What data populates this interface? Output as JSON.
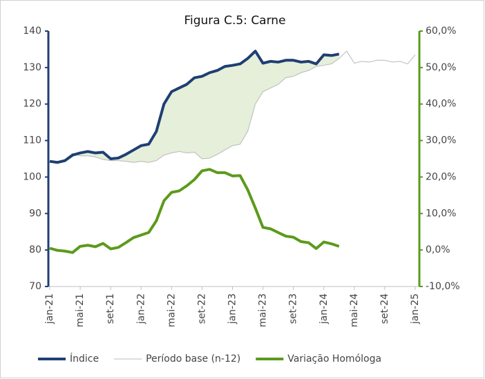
{
  "chart_data": {
    "type": "line",
    "title": "Figura C.5: Carne",
    "categories": [
      "jan-21",
      null,
      null,
      null,
      "mai-21",
      null,
      null,
      null,
      "set-21",
      null,
      null,
      null,
      "jan-22",
      null,
      null,
      null,
      "mai-22",
      null,
      null,
      null,
      "set-22",
      null,
      null,
      null,
      "jan-23",
      null,
      null,
      null,
      "mai-23",
      null,
      null,
      null,
      "set-23",
      null,
      null,
      null,
      "jan-24",
      null,
      null,
      null,
      "mai-24",
      null,
      null,
      null,
      "set-24",
      null,
      null,
      null,
      "jan-25"
    ],
    "series": [
      {
        "name": "Índice",
        "color": "#1f3f73",
        "axis": "y",
        "values": [
          104.3,
          104.0,
          104.5,
          106.0,
          106.6,
          107.0,
          106.6,
          106.8,
          105.0,
          105.2,
          106.2,
          107.4,
          108.6,
          109.0,
          112.5,
          120.0,
          123.4,
          124.4,
          125.4,
          127.2,
          127.6,
          128.6,
          129.2,
          130.3,
          130.6,
          131.0,
          132.5,
          134.5,
          131.2,
          131.7,
          131.5,
          132.0,
          132.0,
          131.5,
          131.7,
          131.0,
          133.5,
          133.3,
          133.7,
          null,
          null,
          null,
          null,
          null,
          null,
          null,
          null,
          null,
          null
        ]
      },
      {
        "name": "Período base (n-12)",
        "color": "#b8b8b8",
        "axis": "y",
        "values": [
          104.0,
          104.3,
          104.8,
          106.5,
          105.8,
          105.8,
          105.5,
          104.8,
          104.5,
          104.5,
          104.3,
          104.0,
          104.3,
          104.0,
          104.5,
          106.0,
          106.6,
          107.0,
          106.6,
          106.8,
          105.0,
          105.2,
          106.2,
          107.4,
          108.6,
          109.0,
          112.5,
          120.0,
          123.4,
          124.4,
          125.4,
          127.2,
          127.6,
          128.6,
          129.2,
          130.3,
          130.6,
          131.0,
          132.5,
          134.5,
          131.2,
          131.7,
          131.5,
          132.0,
          132.0,
          131.5,
          131.7,
          131.0,
          133.5
        ]
      },
      {
        "name": "Variação Homóloga",
        "color": "#5b9a1b",
        "axis": "y2",
        "values": [
          0.5,
          -0.1,
          -0.3,
          -0.7,
          1.0,
          1.3,
          0.9,
          1.8,
          0.3,
          0.7,
          2.0,
          3.4,
          4.1,
          4.8,
          8.0,
          13.5,
          15.8,
          16.2,
          17.6,
          19.3,
          21.7,
          22.1,
          21.2,
          21.2,
          20.3,
          20.4,
          16.5,
          11.5,
          6.2,
          5.8,
          4.8,
          3.8,
          3.5,
          2.3,
          2.0,
          0.4,
          2.2,
          1.7,
          1.0,
          null,
          null,
          null,
          null,
          null,
          null,
          null,
          null,
          null,
          null
        ]
      }
    ],
    "ylim": [
      70,
      140
    ],
    "yticks": [
      70,
      80,
      90,
      100,
      110,
      120,
      130,
      140
    ],
    "y2lim": [
      -10,
      60
    ],
    "y2ticks": [
      {
        "value": -10,
        "label": "-10,0%"
      },
      {
        "value": 0,
        "label": "0,0%"
      },
      {
        "value": 10,
        "label": "10,0%"
      },
      {
        "value": 20,
        "label": "20,0%"
      },
      {
        "value": 30,
        "label": "30,0%"
      },
      {
        "value": 40,
        "label": "40,0%"
      },
      {
        "value": 50,
        "label": "50,0%"
      },
      {
        "value": 60,
        "label": "60,0%"
      }
    ],
    "grid": false,
    "legend": "bottom"
  }
}
